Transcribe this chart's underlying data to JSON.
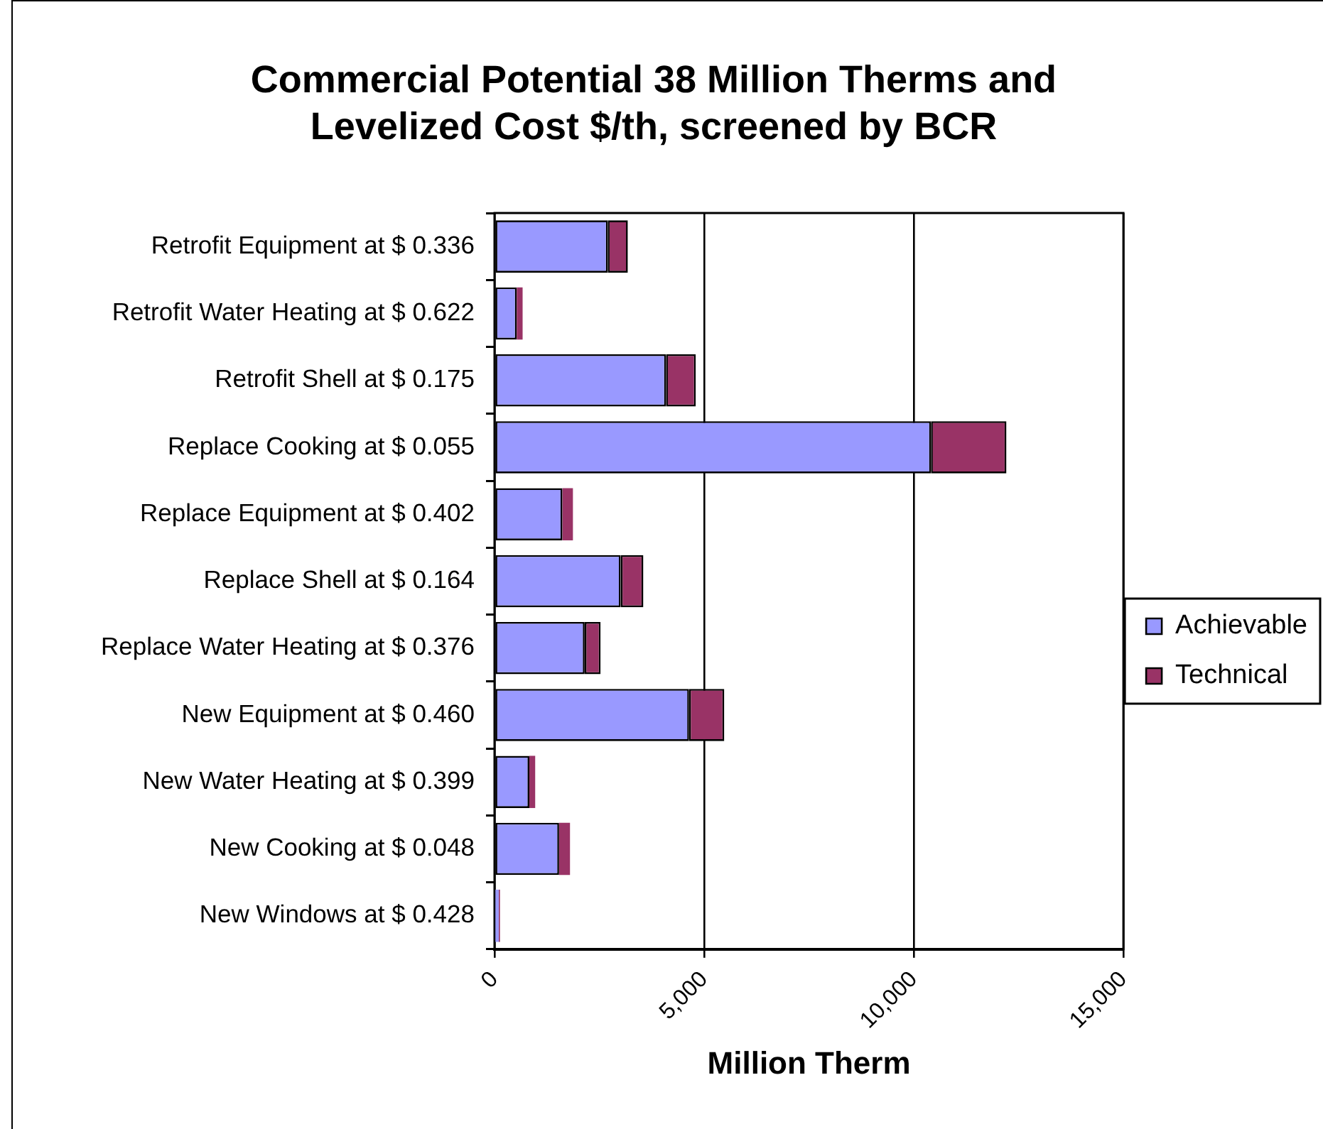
{
  "chart_data": {
    "type": "bar",
    "orientation": "horizontal",
    "stacked": true,
    "title": "Commercial Potential 38 Million Therms and Levelized Cost $/th, screened by BCR",
    "xlabel": "Million Therm",
    "categories": [
      "Retrofit Equipment at $ 0.336",
      "Retrofit Water Heating at $ 0.622",
      "Retrofit Shell at $ 0.175",
      "Replace Cooking at $ 0.055",
      "Replace Equipment at $ 0.402",
      "Replace Shell at $ 0.164",
      "Replace Water Heating at $ 0.376",
      "New Equipment at $ 0.460",
      "New Water Heating at $ 0.399",
      "New Cooking at $ 0.048",
      "New Windows at $ 0.428"
    ],
    "series": [
      {
        "name": "Achievable",
        "color": "#9999ff",
        "values": [
          2700,
          530,
          4090,
          10410,
          1620,
          3010,
          2150,
          4640,
          830,
          1540,
          100
        ]
      },
      {
        "name": "Technical",
        "color": "#993366",
        "values": [
          480,
          140,
          710,
          1800,
          250,
          540,
          380,
          840,
          140,
          260,
          30
        ]
      }
    ],
    "xlim": [
      0,
      15000
    ],
    "xticks": [
      0,
      {
        "value": 5000,
        "label": "5,000"
      },
      {
        "value": 10000,
        "label": "10,000"
      },
      {
        "value": 15000,
        "label": "15,000"
      }
    ],
    "grid": "x",
    "legend": "right"
  }
}
